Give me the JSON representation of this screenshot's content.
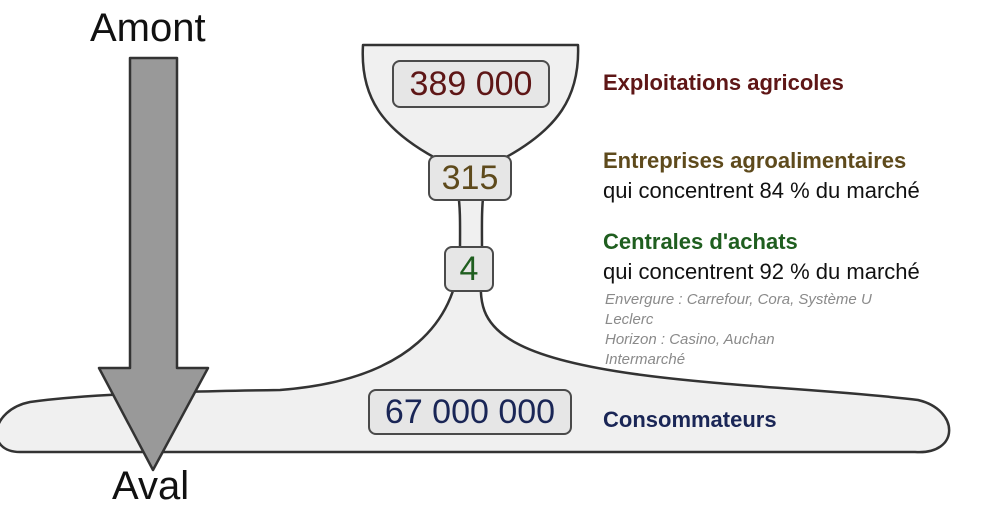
{
  "flow": {
    "top_label": "Amont",
    "bottom_label": "Aval"
  },
  "colors": {
    "farms": "#5e1616",
    "agrofood": "#5e4a1c",
    "buyers": "#1f5e1f",
    "consumers": "#1a2656",
    "funnel_fill": "#f0f0f0",
    "funnel_stroke": "#333333",
    "arrow_fill": "#999999"
  },
  "levels": [
    {
      "count": "389 000",
      "title": "Exploitations agricoles"
    },
    {
      "count": "315",
      "title": "Entreprises agroalimentaires",
      "subtitle": "qui concentrent 84 % du marché"
    },
    {
      "count": "4",
      "title": "Centrales d'achats",
      "subtitle": "qui concentrent 92 % du marché",
      "notes": [
        "Envergure : Carrefour, Cora, Système U",
        "Leclerc",
        "Horizon : Casino, Auchan",
        "Intermarché"
      ]
    },
    {
      "count": "67 000 000",
      "title": "Consommateurs"
    }
  ]
}
